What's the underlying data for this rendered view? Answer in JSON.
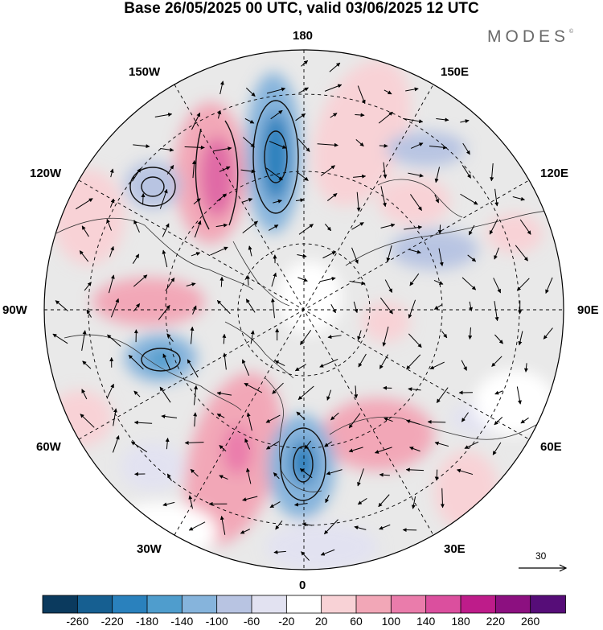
{
  "header": {
    "title": "Base 26/05/2025 00 UTC, valid 03/06/2025 12 UTC",
    "brand": "MODES",
    "brand_mark": "©"
  },
  "map": {
    "projection": "north-polar-stereographic",
    "longitude_labels": {
      "top": "180",
      "bottom": "0",
      "left": "90W",
      "right": "90E",
      "upper_left_1": "150W",
      "upper_left_2": "120W",
      "upper_right_1": "150E",
      "upper_right_2": "120E",
      "lower_left_1": "60W",
      "lower_left_2": "30W",
      "lower_right_1": "60E",
      "lower_right_2": "30E"
    },
    "field": "anomaly",
    "overlay": "wind-vectors"
  },
  "reference_vector": {
    "label": "30"
  },
  "colorbar": {
    "colors": [
      "#0b3a5e",
      "#165f91",
      "#2a81bd",
      "#4f9dcd",
      "#86b4dc",
      "#b8c4e2",
      "#e2e2f1",
      "#ffffff",
      "#f8d2d6",
      "#f2a7b7",
      "#ea7cab",
      "#db4f9e",
      "#be1c8a",
      "#8c1080",
      "#560d78"
    ],
    "tick_labels": [
      "-260",
      "-220",
      "-180",
      "-140",
      "-100",
      "-60",
      "-20",
      "20",
      "60",
      "100",
      "140",
      "180",
      "220",
      "260"
    ]
  }
}
